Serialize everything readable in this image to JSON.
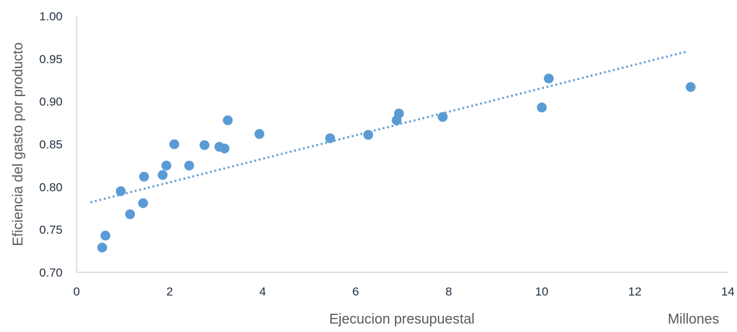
{
  "chart_data": {
    "type": "scatter",
    "title": "",
    "xlabel": "Ejecucion presupuestal",
    "ylabel": "Eficiencia del gasto por producto",
    "x_unit_label": "Millones",
    "xlim": [
      0,
      14
    ],
    "ylim": [
      0.7,
      1.0
    ],
    "x_ticks": [
      "0",
      "2",
      "4",
      "6",
      "8",
      "10",
      "12",
      "14"
    ],
    "y_ticks": [
      "0.70",
      "0.75",
      "0.80",
      "0.85",
      "0.90",
      "0.95",
      "1.00"
    ],
    "grid": false,
    "legend": "none",
    "series": [
      {
        "marker_color": "#5b9bd5",
        "points": [
          {
            "x": 0.55,
            "y": 0.729
          },
          {
            "x": 0.62,
            "y": 0.743
          },
          {
            "x": 0.95,
            "y": 0.795
          },
          {
            "x": 1.15,
            "y": 0.768
          },
          {
            "x": 1.43,
            "y": 0.781
          },
          {
            "x": 1.45,
            "y": 0.812
          },
          {
            "x": 1.85,
            "y": 0.814
          },
          {
            "x": 1.93,
            "y": 0.825
          },
          {
            "x": 2.1,
            "y": 0.85
          },
          {
            "x": 2.42,
            "y": 0.825
          },
          {
            "x": 2.75,
            "y": 0.849
          },
          {
            "x": 3.07,
            "y": 0.847
          },
          {
            "x": 3.18,
            "y": 0.845
          },
          {
            "x": 3.25,
            "y": 0.878
          },
          {
            "x": 3.93,
            "y": 0.862
          },
          {
            "x": 5.45,
            "y": 0.857
          },
          {
            "x": 6.27,
            "y": 0.861
          },
          {
            "x": 6.88,
            "y": 0.878
          },
          {
            "x": 6.93,
            "y": 0.886
          },
          {
            "x": 7.87,
            "y": 0.882
          },
          {
            "x": 10.0,
            "y": 0.893
          },
          {
            "x": 10.15,
            "y": 0.927
          },
          {
            "x": 13.2,
            "y": 0.917
          }
        ]
      }
    ],
    "trendline": {
      "type": "linear",
      "style": "dotted",
      "color": "#5b9bd5",
      "from": {
        "x": 0.3,
        "y": 0.782
      },
      "to": {
        "x": 13.15,
        "y": 0.959
      }
    }
  }
}
